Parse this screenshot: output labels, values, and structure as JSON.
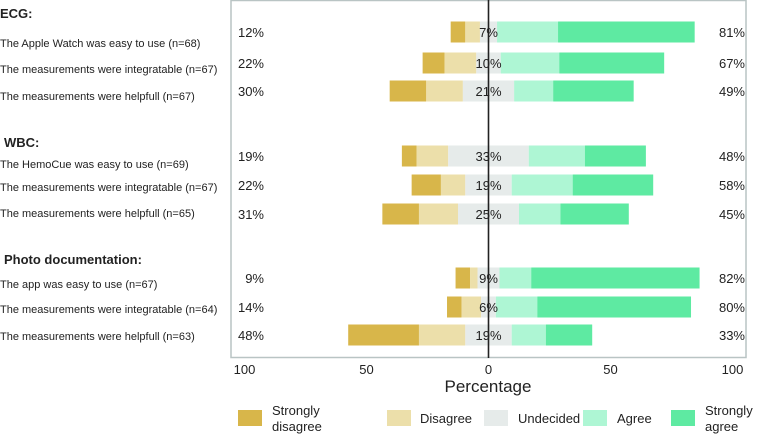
{
  "chart_data": {
    "type": "bar",
    "subtype": "diverging-stacked-likert",
    "xlabel": "Percentage",
    "xlim": [
      -100,
      100
    ],
    "xticks": [
      {
        "value": -100,
        "label": "100"
      },
      {
        "value": -50,
        "label": "50"
      },
      {
        "value": 0,
        "label": "0"
      },
      {
        "value": 50,
        "label": "50"
      },
      {
        "value": 100,
        "label": "100"
      }
    ],
    "legend": {
      "placement": "bottom",
      "entries": [
        {
          "key": "sd",
          "line1": "Strongly",
          "line2": "disagree",
          "color": "#d8b64a"
        },
        {
          "key": "d",
          "line1": "Disagree",
          "line2": "",
          "color": "#ecdfaa"
        },
        {
          "key": "u",
          "line1": "Undecided",
          "line2": "",
          "color": "#e6ebea"
        },
        {
          "key": "a",
          "line1": "Agree",
          "line2": "",
          "color": "#aef6d4"
        },
        {
          "key": "sa",
          "line1": "Strongly",
          "line2": "agree",
          "color": "#5eeaa2"
        }
      ]
    },
    "groups": [
      {
        "title": "ECG:",
        "items": [
          {
            "label": "The Apple Watch was easy to use (n=68)",
            "sd": 6,
            "d": 6,
            "u": 7,
            "a": 25,
            "sa": 56,
            "left_label": "12%",
            "mid_label": "7%",
            "right_label": "81%"
          },
          {
            "label": "The measurements were integratable (n=67)",
            "sd": 9,
            "d": 13,
            "u": 10,
            "a": 24,
            "sa": 43,
            "left_label": "22%",
            "mid_label": "10%",
            "right_label": "67%"
          },
          {
            "label": "The measurements were helpfull (n=67)",
            "sd": 15,
            "d": 15,
            "u": 21,
            "a": 16,
            "sa": 33,
            "left_label": "30%",
            "mid_label": "21%",
            "right_label": "49%"
          }
        ]
      },
      {
        "title": "WBC:",
        "items": [
          {
            "label": "The HemoCue was easy to use (n=69)",
            "sd": 6,
            "d": 13,
            "u": 33,
            "a": 23,
            "sa": 25,
            "left_label": "19%",
            "mid_label": "33%",
            "right_label": "48%"
          },
          {
            "label": "The measurements were integratable (n=67)",
            "sd": 12,
            "d": 10,
            "u": 19,
            "a": 25,
            "sa": 33,
            "left_label": "22%",
            "mid_label": "19%",
            "right_label": "58%"
          },
          {
            "label": "The measurements were helpfull (n=65)",
            "sd": 15,
            "d": 16,
            "u": 25,
            "a": 17,
            "sa": 28,
            "left_label": "31%",
            "mid_label": "25%",
            "right_label": "45%"
          }
        ]
      },
      {
        "title": "Photo documentation:",
        "items": [
          {
            "label": "The app was easy to use (n=67)",
            "sd": 6,
            "d": 3,
            "u": 9,
            "a": 13,
            "sa": 69,
            "left_label": "9%",
            "mid_label": "9%",
            "right_label": "82%"
          },
          {
            "label": "The measurements were integratable (n=64)",
            "sd": 6,
            "d": 8,
            "u": 6,
            "a": 17,
            "sa": 63,
            "left_label": "14%",
            "mid_label": "6%",
            "right_label": "80%"
          },
          {
            "label": "The measurements were helpfull (n=63)",
            "sd": 29,
            "d": 19,
            "u": 19,
            "a": 14,
            "sa": 19,
            "left_label": "48%",
            "mid_label": "19%",
            "right_label": "33%"
          }
        ]
      }
    ]
  }
}
